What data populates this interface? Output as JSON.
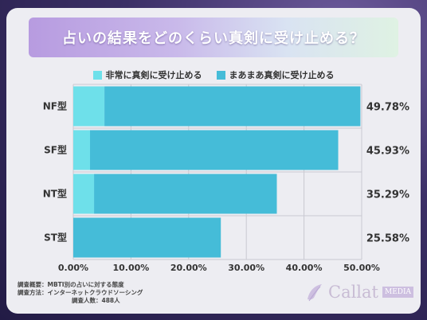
{
  "title": "占いの結果をどのくらい真剣に受け止める？",
  "chart_data": {
    "type": "bar",
    "orientation": "horizontal",
    "stacked": true,
    "categories": [
      "NF型",
      "SF型",
      "NT型",
      "ST型"
    ],
    "series": [
      {
        "name": "非常に真剣に受け止める",
        "color": "#6ee0ea",
        "values": [
          5.4,
          2.9,
          3.6,
          0.0
        ]
      },
      {
        "name": "まあまあ真剣に受け止める",
        "color": "#45bcd8",
        "values": [
          44.38,
          43.03,
          31.69,
          25.58
        ]
      }
    ],
    "totals": [
      "49.78%",
      "45.93%",
      "35.29%",
      "25.58%"
    ],
    "xlim": [
      0,
      50
    ],
    "xticks": [
      "0.00%",
      "10.00%",
      "20.00%",
      "30.00%",
      "40.00%",
      "50.00%"
    ],
    "grid": true,
    "legend": "top"
  },
  "footer": {
    "line1": "調査概要：MBTI別の占いに対する態度",
    "line2": "調査方法：インターネットクラウドソーシング",
    "line3": "調査人数：488人"
  },
  "logo": {
    "name": "Callat",
    "badge": "MEDIA"
  }
}
